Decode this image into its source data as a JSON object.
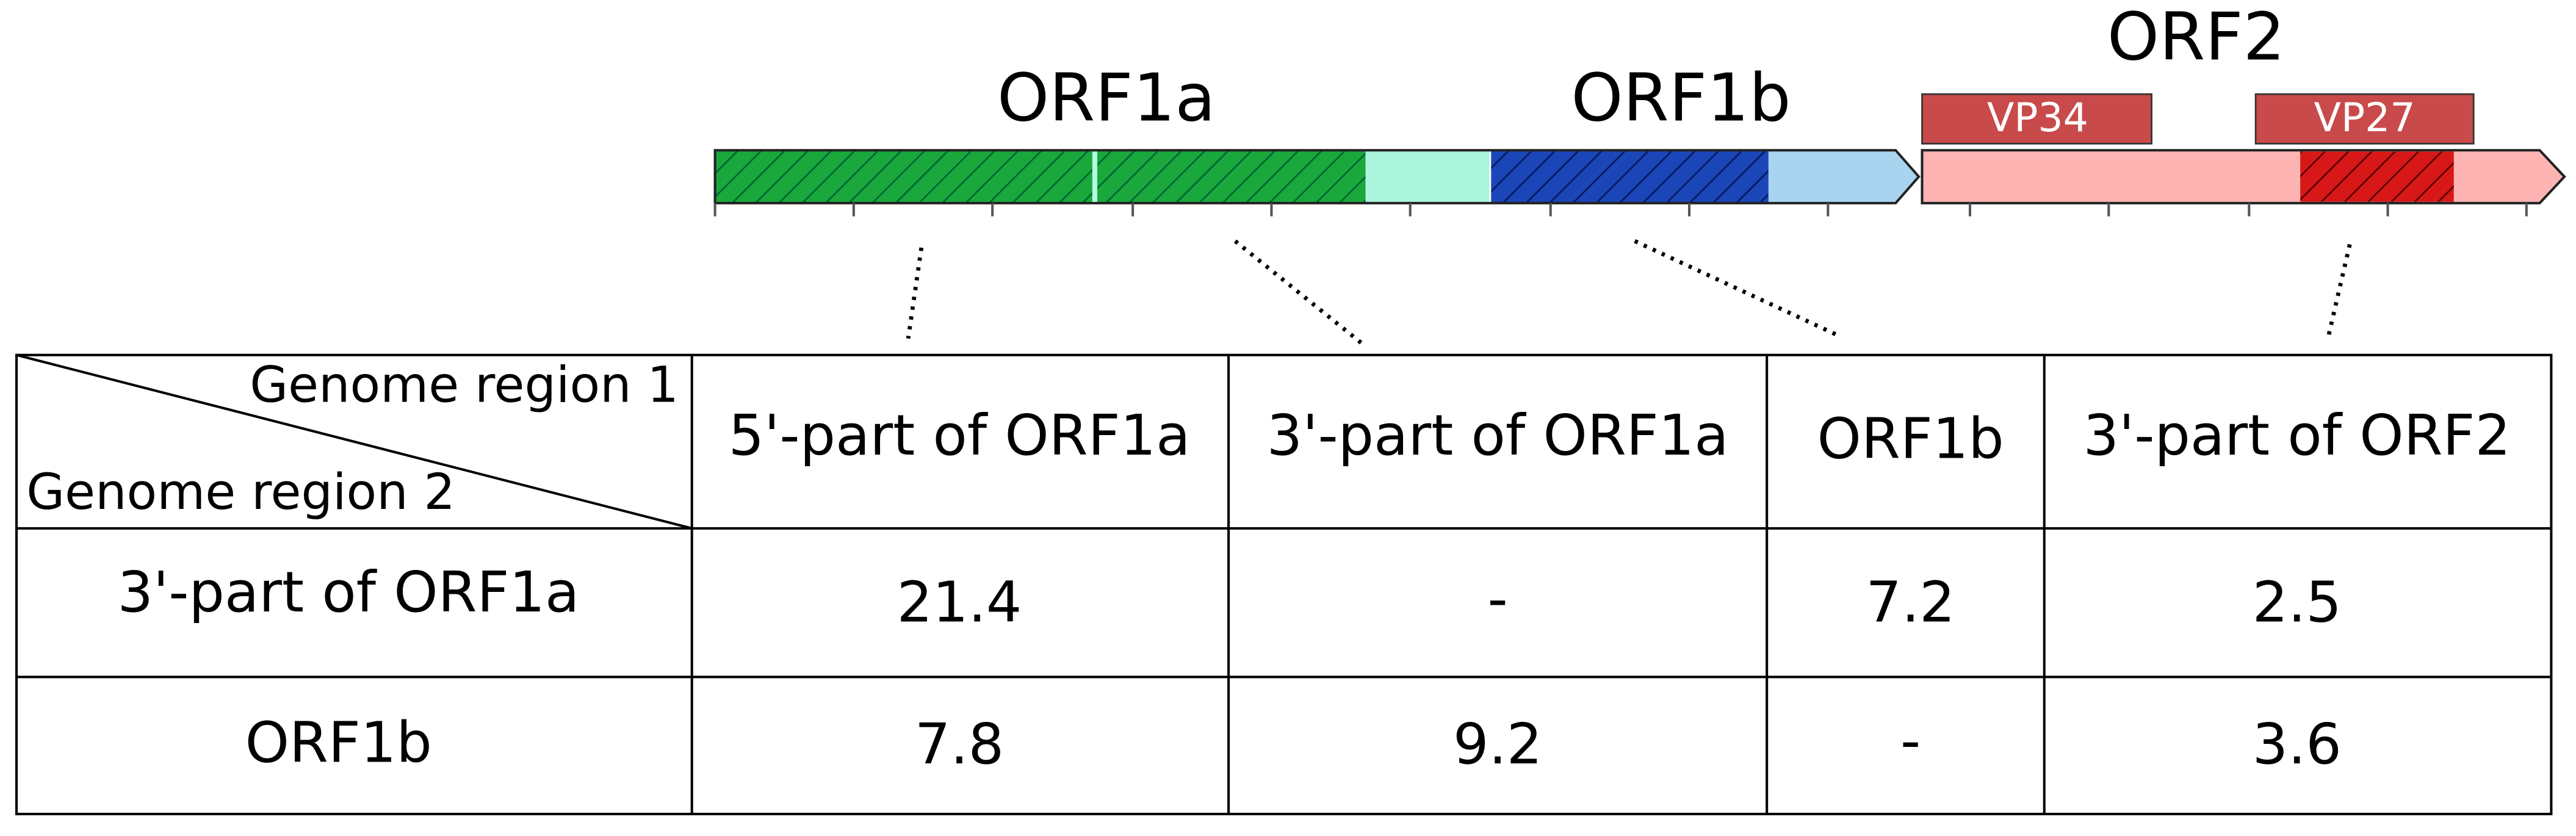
{
  "genome": {
    "orf1a": "ORF1a",
    "orf1b": "ORF1b",
    "orf2": "ORF2",
    "vp34": "VP34",
    "vp27": "VP27"
  },
  "table": {
    "corner_top": "Genome region 1",
    "corner_bottom": "Genome region 2",
    "columns": [
      "5'-part of ORF1a",
      "3'-part of ORF1a",
      "ORF1b",
      "3'-part of ORF2"
    ],
    "rows": [
      {
        "label": "3'-part of ORF1a",
        "cells": [
          "21.4",
          "-",
          "7.2",
          "2.5"
        ]
      },
      {
        "label": "ORF1b",
        "cells": [
          "7.8",
          "9.2",
          "-",
          "3.6"
        ]
      }
    ]
  }
}
